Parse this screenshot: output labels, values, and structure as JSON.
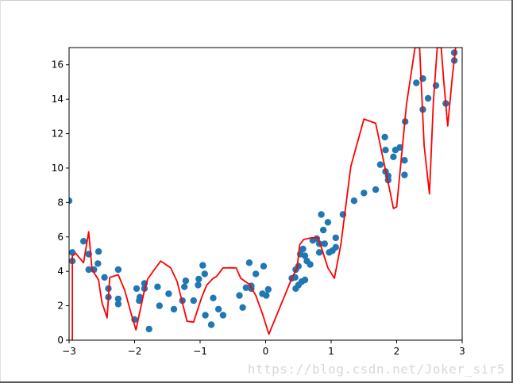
{
  "watermark": "https://blog.csdn.net/Joker_sir5",
  "chart_data": {
    "type": "scatter",
    "title": "",
    "xlabel": "",
    "ylabel": "",
    "xlim": [
      -3,
      3
    ],
    "ylim": [
      0,
      17
    ],
    "xticks": [
      -3,
      -2,
      -1,
      0,
      1,
      2,
      3
    ],
    "xtick_labels": [
      "−3",
      "−2",
      "−1",
      "0",
      "1",
      "2",
      "3"
    ],
    "yticks": [
      0,
      2,
      4,
      6,
      8,
      10,
      12,
      14,
      16
    ],
    "ytick_labels": [
      "0",
      "2",
      "4",
      "6",
      "8",
      "10",
      "12",
      "14",
      "16"
    ],
    "grid": false,
    "series": [
      {
        "kind": "scatter",
        "color": "#1f77b4",
        "points": [
          [
            -3.0,
            8.1
          ],
          [
            -2.95,
            5.1
          ],
          [
            -2.95,
            4.6
          ],
          [
            -2.78,
            5.75
          ],
          [
            -2.7,
            5.0
          ],
          [
            -2.7,
            4.1
          ],
          [
            -2.62,
            4.1
          ],
          [
            -2.55,
            5.15
          ],
          [
            -2.56,
            4.45
          ],
          [
            -2.46,
            3.65
          ],
          [
            -2.4,
            3.0
          ],
          [
            -2.4,
            2.5
          ],
          [
            -2.25,
            4.1
          ],
          [
            -2.25,
            2.4
          ],
          [
            -2.25,
            2.1
          ],
          [
            -2.0,
            1.2
          ],
          [
            -1.97,
            3.0
          ],
          [
            -1.93,
            2.3
          ],
          [
            -1.92,
            2.5
          ],
          [
            -1.85,
            3.3
          ],
          [
            -1.85,
            3.0
          ],
          [
            -1.78,
            0.65
          ],
          [
            -1.65,
            3.1
          ],
          [
            -1.62,
            2.0
          ],
          [
            -1.48,
            2.7
          ],
          [
            -1.4,
            1.8
          ],
          [
            -1.27,
            2.3
          ],
          [
            -1.24,
            3.1
          ],
          [
            -1.22,
            3.45
          ],
          [
            -1.1,
            2.3
          ],
          [
            -1.02,
            3.55
          ],
          [
            -1.03,
            3.2
          ],
          [
            -0.96,
            4.35
          ],
          [
            -0.93,
            3.85
          ],
          [
            -0.92,
            1.45
          ],
          [
            -0.83,
            0.9
          ],
          [
            -0.8,
            2.45
          ],
          [
            -0.72,
            1.8
          ],
          [
            -0.65,
            1.45
          ],
          [
            -0.4,
            2.6
          ],
          [
            -0.35,
            1.9
          ],
          [
            -0.3,
            3.05
          ],
          [
            -0.25,
            4.5
          ],
          [
            -0.22,
            3.15
          ],
          [
            -0.22,
            3.0
          ],
          [
            -0.15,
            3.85
          ],
          [
            -0.05,
            2.7
          ],
          [
            -0.03,
            4.3
          ],
          [
            0.01,
            2.6
          ],
          [
            0.04,
            2.95
          ],
          [
            0.4,
            3.6
          ],
          [
            0.45,
            3.65
          ],
          [
            0.46,
            4.1
          ],
          [
            0.46,
            3.0
          ],
          [
            0.5,
            4.3
          ],
          [
            0.5,
            3.2
          ],
          [
            0.53,
            5.0
          ],
          [
            0.55,
            3.4
          ],
          [
            0.57,
            5.3
          ],
          [
            0.6,
            3.5
          ],
          [
            0.6,
            4.9
          ],
          [
            0.63,
            4.6
          ],
          [
            0.68,
            4.4
          ],
          [
            0.72,
            5.8
          ],
          [
            0.78,
            5.9
          ],
          [
            0.82,
            5.6
          ],
          [
            0.82,
            5.1
          ],
          [
            0.85,
            7.3
          ],
          [
            0.88,
            6.4
          ],
          [
            0.9,
            5.6
          ],
          [
            0.95,
            6.85
          ],
          [
            0.97,
            5.1
          ],
          [
            1.02,
            5.2
          ],
          [
            1.07,
            5.95
          ],
          [
            1.07,
            5.4
          ],
          [
            1.18,
            7.3
          ],
          [
            1.35,
            8.1
          ],
          [
            1.5,
            8.55
          ],
          [
            1.68,
            8.75
          ],
          [
            1.75,
            10.2
          ],
          [
            1.82,
            11.8
          ],
          [
            1.83,
            11.05
          ],
          [
            1.83,
            9.8
          ],
          [
            1.87,
            9.55
          ],
          [
            1.87,
            9.3
          ],
          [
            1.95,
            10.65
          ],
          [
            1.98,
            11.05
          ],
          [
            2.05,
            11.2
          ],
          [
            2.13,
            12.7
          ],
          [
            2.12,
            10.45
          ],
          [
            2.12,
            9.6
          ],
          [
            2.3,
            14.95
          ],
          [
            2.4,
            15.2
          ],
          [
            2.4,
            13.4
          ],
          [
            2.48,
            14.05
          ],
          [
            2.6,
            14.8
          ],
          [
            2.75,
            13.75
          ],
          [
            2.88,
            16.7
          ],
          [
            2.88,
            16.25
          ]
        ]
      },
      {
        "kind": "line",
        "color": "#ff0000",
        "points": [
          [
            -2.95,
            0.0
          ],
          [
            -2.95,
            4.9
          ],
          [
            -2.9,
            5.05
          ],
          [
            -2.78,
            4.5
          ],
          [
            -2.7,
            6.3
          ],
          [
            -2.65,
            4.1
          ],
          [
            -2.55,
            3.5
          ],
          [
            -2.5,
            2.2
          ],
          [
            -2.42,
            1.3
          ],
          [
            -2.38,
            3.65
          ],
          [
            -2.25,
            3.8
          ],
          [
            -2.15,
            2.9
          ],
          [
            -2.05,
            1.5
          ],
          [
            -1.98,
            0.6
          ],
          [
            -1.85,
            2.9
          ],
          [
            -1.8,
            3.55
          ],
          [
            -1.7,
            4.1
          ],
          [
            -1.6,
            4.6
          ],
          [
            -1.45,
            4.2
          ],
          [
            -1.35,
            3.4
          ],
          [
            -1.2,
            1.1
          ],
          [
            -1.1,
            1.05
          ],
          [
            -0.98,
            2.45
          ],
          [
            -0.9,
            3.2
          ],
          [
            -0.8,
            3.6
          ],
          [
            -0.75,
            3.7
          ],
          [
            -0.65,
            4.2
          ],
          [
            -0.45,
            4.2
          ],
          [
            -0.38,
            3.6
          ],
          [
            -0.25,
            3.25
          ],
          [
            -0.15,
            2.6
          ],
          [
            -0.05,
            1.55
          ],
          [
            0.05,
            0.35
          ],
          [
            0.4,
            3.6
          ],
          [
            0.48,
            4.2
          ],
          [
            0.52,
            5.55
          ],
          [
            0.58,
            5.85
          ],
          [
            0.7,
            5.95
          ],
          [
            0.8,
            5.95
          ],
          [
            0.85,
            5.4
          ],
          [
            0.95,
            4.2
          ],
          [
            1.05,
            3.6
          ],
          [
            1.15,
            5.6
          ],
          [
            1.3,
            10.1
          ],
          [
            1.5,
            12.85
          ],
          [
            1.68,
            12.6
          ],
          [
            1.9,
            8.6
          ],
          [
            1.95,
            7.65
          ],
          [
            2.0,
            7.75
          ],
          [
            2.15,
            13.7
          ],
          [
            2.28,
            17.0
          ],
          [
            2.35,
            17.0
          ],
          [
            2.42,
            11.3
          ],
          [
            2.5,
            8.5
          ],
          [
            2.56,
            13.8
          ],
          [
            2.62,
            17.0
          ],
          [
            2.68,
            17.0
          ],
          [
            2.72,
            15.0
          ],
          [
            2.78,
            12.45
          ],
          [
            2.85,
            15.3
          ],
          [
            2.9,
            17.0
          ]
        ]
      }
    ]
  }
}
